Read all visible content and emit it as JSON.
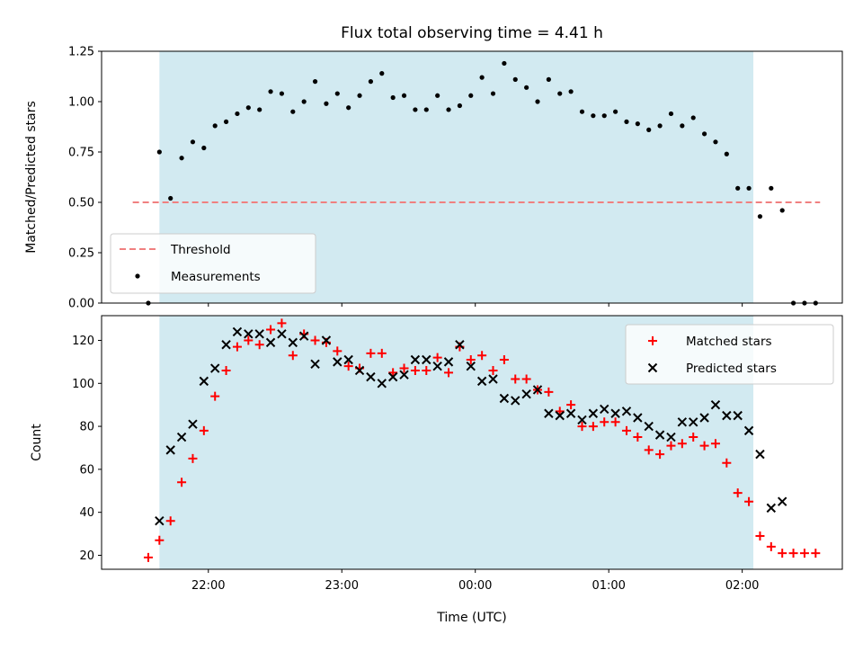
{
  "chart_data": [
    {
      "type": "scatter",
      "title": "Flux total observing time = 4.41 h",
      "xlabel": "",
      "ylabel": "Matched/Predicted stars",
      "xlim_minutes": [
        1272,
        1605
      ],
      "ylim": [
        0,
        1.25
      ],
      "yticks": [
        0.0,
        0.25,
        0.5,
        0.75,
        1.0,
        1.25
      ],
      "yticklabels": [
        "0.00",
        "0.25",
        "0.50",
        "0.75",
        "1.00",
        "1.25"
      ],
      "observing_window_minutes": [
        1298,
        1565
      ],
      "observing_window_color": "#add8e6",
      "threshold": {
        "name": "Threshold",
        "value": 0.5,
        "x_range_minutes": [
          1286,
          1595
        ],
        "color": "#f08080"
      },
      "legend": {
        "position": "lower-left",
        "entries": [
          "Threshold",
          "Measurements"
        ]
      },
      "series": [
        {
          "name": "Measurements",
          "color": "#000000",
          "x_minutes": [
            1293,
            1298,
            1303,
            1308,
            1313,
            1318,
            1323,
            1328,
            1333,
            1338,
            1343,
            1348,
            1353,
            1358,
            1363,
            1368,
            1373,
            1378,
            1383,
            1388,
            1393,
            1398,
            1403,
            1408,
            1413,
            1418,
            1423,
            1428,
            1433,
            1438,
            1443,
            1448,
            1453,
            1458,
            1463,
            1468,
            1473,
            1478,
            1483,
            1488,
            1493,
            1498,
            1503,
            1508,
            1513,
            1518,
            1523,
            1528,
            1533,
            1538,
            1543,
            1548,
            1553,
            1558,
            1563,
            1568,
            1573,
            1578,
            1583,
            1588,
            1593
          ],
          "y": [
            0.0,
            0.75,
            0.52,
            0.72,
            0.8,
            0.77,
            0.88,
            0.9,
            0.94,
            0.97,
            0.96,
            1.05,
            1.04,
            0.95,
            1.0,
            1.1,
            0.99,
            1.04,
            0.97,
            1.03,
            1.1,
            1.14,
            1.02,
            1.03,
            0.96,
            0.96,
            1.03,
            0.96,
            0.98,
            1.03,
            1.12,
            1.04,
            1.19,
            1.11,
            1.07,
            1.0,
            1.11,
            1.04,
            1.05,
            0.95,
            0.93,
            0.93,
            0.95,
            0.9,
            0.89,
            0.86,
            0.88,
            0.94,
            0.88,
            0.92,
            0.84,
            0.8,
            0.74,
            0.57,
            0.57,
            0.43,
            0.57,
            0.46,
            0.0,
            0.0,
            0.0
          ]
        }
      ]
    },
    {
      "type": "scatter",
      "title": "",
      "xlabel": "Time (UTC)",
      "ylabel": "Count",
      "xlim_minutes": [
        1272,
        1605
      ],
      "ylim": [
        13.5,
        131.5
      ],
      "yticks": [
        20,
        40,
        60,
        80,
        100,
        120
      ],
      "yticklabels": [
        "20",
        "40",
        "60",
        "80",
        "100",
        "120"
      ],
      "xticks_minutes": [
        1320,
        1380,
        1440,
        1500,
        1560
      ],
      "xticklabels": [
        "22:00",
        "23:00",
        "00:00",
        "01:00",
        "02:00"
      ],
      "observing_window_minutes": [
        1298,
        1565
      ],
      "legend": {
        "position": "upper-right",
        "entries": [
          "Matched stars",
          "Predicted stars"
        ]
      },
      "series": [
        {
          "name": "Matched stars",
          "color": "#ff0000",
          "marker": "+",
          "x_minutes": [
            1293,
            1298,
            1303,
            1308,
            1313,
            1318,
            1323,
            1328,
            1333,
            1338,
            1343,
            1348,
            1353,
            1358,
            1363,
            1368,
            1373,
            1378,
            1383,
            1388,
            1393,
            1398,
            1403,
            1408,
            1413,
            1418,
            1423,
            1428,
            1433,
            1438,
            1443,
            1448,
            1453,
            1458,
            1463,
            1468,
            1473,
            1478,
            1483,
            1488,
            1493,
            1498,
            1503,
            1508,
            1513,
            1518,
            1523,
            1528,
            1533,
            1538,
            1543,
            1548,
            1553,
            1558,
            1563,
            1568,
            1573,
            1578,
            1583,
            1588,
            1593
          ],
          "y": [
            19,
            27,
            36,
            54,
            65,
            78,
            94,
            106,
            117,
            120,
            118,
            125,
            128,
            113,
            123,
            120,
            119,
            115,
            108,
            107,
            114,
            114,
            105,
            107,
            106,
            106,
            112,
            105,
            117,
            111,
            113,
            106,
            111,
            102,
            102,
            97,
            96,
            87,
            90,
            80,
            80,
            82,
            82,
            78,
            75,
            69,
            67,
            71,
            72,
            75,
            71,
            72,
            63,
            49,
            45,
            29,
            24,
            21,
            21,
            21,
            21
          ]
        },
        {
          "name": "Predicted stars",
          "color": "#000000",
          "marker": "x",
          "x_minutes": [
            1298,
            1303,
            1308,
            1313,
            1318,
            1323,
            1328,
            1333,
            1338,
            1343,
            1348,
            1353,
            1358,
            1363,
            1368,
            1373,
            1378,
            1383,
            1388,
            1393,
            1398,
            1403,
            1408,
            1413,
            1418,
            1423,
            1428,
            1433,
            1438,
            1443,
            1448,
            1453,
            1458,
            1463,
            1468,
            1473,
            1478,
            1483,
            1488,
            1493,
            1498,
            1503,
            1508,
            1513,
            1518,
            1523,
            1528,
            1533,
            1538,
            1543,
            1548,
            1553,
            1558,
            1563,
            1568,
            1573,
            1578
          ],
          "y": [
            36,
            69,
            75,
            81,
            101,
            107,
            118,
            124,
            123,
            123,
            119,
            123,
            119,
            122,
            109,
            120,
            110,
            111,
            106,
            103,
            100,
            103,
            104,
            111,
            111,
            108,
            110,
            118,
            108,
            101,
            102,
            93,
            92,
            95,
            97,
            86,
            85,
            86,
            83,
            86,
            88,
            86,
            87,
            84,
            80,
            76,
            75,
            82,
            82,
            84,
            90,
            85,
            85,
            78,
            67,
            42,
            45
          ]
        }
      ]
    }
  ]
}
